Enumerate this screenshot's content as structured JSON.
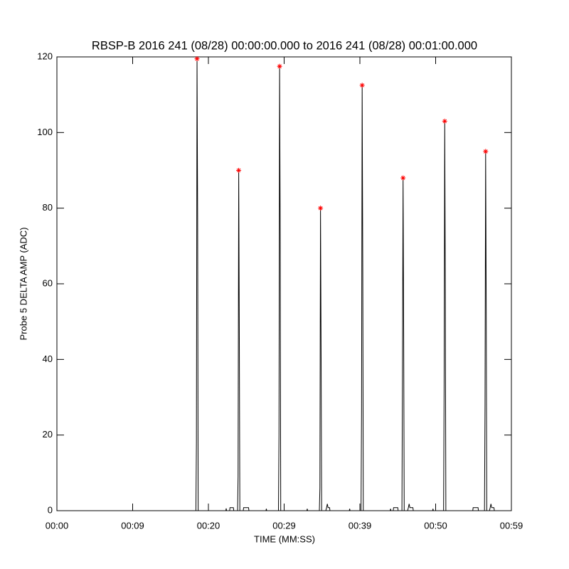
{
  "chart_data": {
    "type": "line",
    "title": "RBSP-B 2016 241 (08/28) 00:00:00.000 to 2016 241 (08/28) 00:01:00.000",
    "x_label": "TIME (MM:SS)",
    "y_label": "Probe 5 DELTA AMP (ADC)",
    "xlim": [
      0,
      60
    ],
    "ylim": [
      0,
      120
    ],
    "xticks": [
      {
        "value": 0,
        "label": "00:00"
      },
      {
        "value": 10,
        "label": "00:09"
      },
      {
        "value": 20,
        "label": "00:20"
      },
      {
        "value": 30,
        "label": "00:29"
      },
      {
        "value": 40,
        "label": "00:39"
      },
      {
        "value": 50,
        "label": "00:50"
      },
      {
        "value": 60,
        "label": "00:59"
      }
    ],
    "yticks": [
      0,
      20,
      40,
      60,
      80,
      100,
      120
    ],
    "series": [
      {
        "color": "#000000",
        "x": [
          0,
          18.35,
          18.42,
          18.5,
          18.58,
          18.65,
          22.3,
          22.35,
          22.4,
          22.8,
          22.85,
          23.3,
          23.35,
          23.85,
          23.92,
          24.0,
          24.08,
          24.15,
          24.6,
          24.65,
          25.3,
          25.35,
          27.6,
          27.65,
          27.7,
          29.25,
          29.32,
          29.4,
          29.48,
          29.55,
          33.0,
          33.05,
          33.1,
          34.65,
          34.72,
          34.8,
          34.88,
          34.95,
          35.5,
          35.6,
          35.7,
          35.8,
          36.0,
          36.05,
          38.6,
          38.65,
          38.7,
          40.15,
          40.22,
          40.3,
          40.38,
          40.45,
          44.0,
          44.05,
          44.1,
          44.4,
          44.45,
          45.0,
          45.05,
          45.55,
          45.62,
          45.7,
          45.78,
          45.85,
          46.3,
          46.4,
          46.5,
          46.6,
          47.0,
          47.05,
          49.6,
          49.65,
          49.7,
          51.05,
          51.12,
          51.2,
          51.28,
          51.35,
          54.9,
          54.95,
          55.6,
          55.65,
          56.45,
          56.52,
          56.6,
          56.68,
          56.75,
          57.1,
          57.2,
          57.3,
          57.4,
          57.7,
          57.75
        ],
        "values": [
          0,
          0,
          18,
          119.5,
          77.5,
          0,
          0,
          0.6,
          0,
          0,
          0.8,
          0.8,
          0,
          0,
          9,
          90,
          48,
          0,
          0,
          0.8,
          0.8,
          0,
          0,
          0.5,
          0,
          0,
          20,
          117.5,
          71.5,
          0,
          0,
          0.5,
          0,
          0,
          6,
          80,
          41.5,
          0,
          0,
          0.8,
          1.8,
          0.8,
          0.8,
          0,
          0,
          0.5,
          0,
          0,
          26,
          112.5,
          64,
          0,
          0,
          0.5,
          0,
          0,
          0.8,
          0.8,
          0,
          0,
          36,
          88,
          47,
          0,
          0,
          0.8,
          1.8,
          0.8,
          0.8,
          0,
          0,
          0.5,
          0,
          0,
          32,
          103,
          56,
          0,
          0,
          0.8,
          0.8,
          0,
          0,
          28,
          95,
          53,
          0,
          0,
          0.8,
          1.8,
          0.8,
          0.8,
          0
        ]
      },
      {
        "color": "#ff0000",
        "marker": "asterisk",
        "x": [
          18.5,
          24.0,
          29.4,
          34.8,
          40.3,
          45.7,
          51.2,
          56.6
        ],
        "values": [
          119.5,
          90,
          117.5,
          80,
          112.5,
          88,
          103,
          95
        ]
      }
    ]
  }
}
